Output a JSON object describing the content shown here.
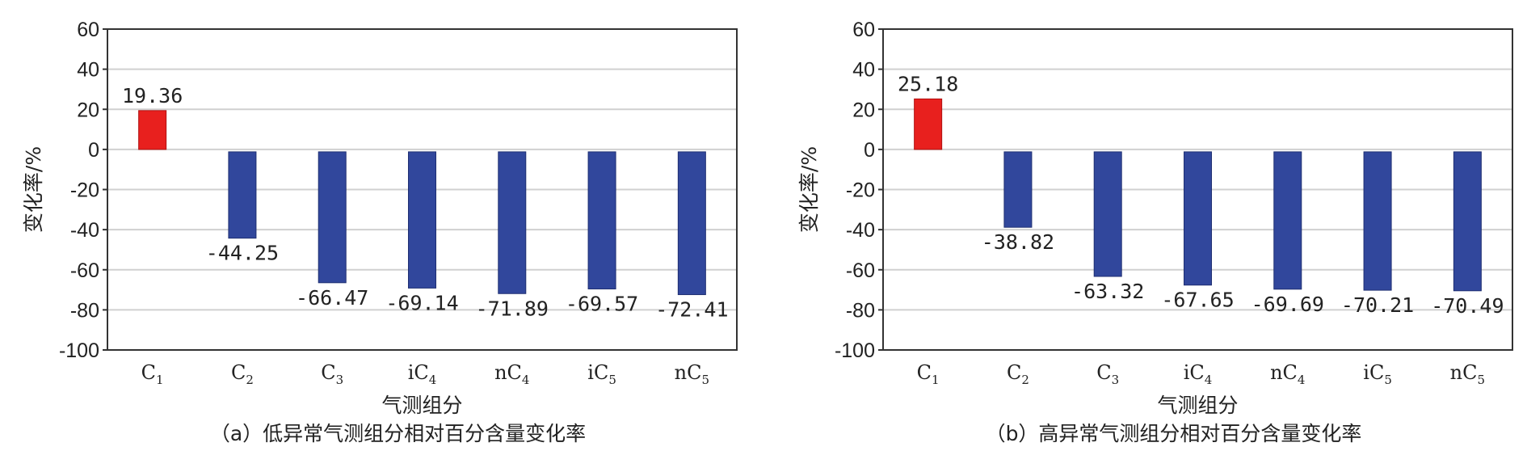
{
  "chart_data": [
    {
      "type": "bar",
      "caption": "（a）低异常气测组分相对百分含量变化率",
      "xlabel": "气测组分",
      "ylabel": "变化率/%",
      "ylim": [
        -100,
        60
      ],
      "yticks": [
        60,
        40,
        20,
        0,
        -20,
        -40,
        -60,
        -80,
        -100
      ],
      "grid": true,
      "categories": [
        {
          "prefix": "C",
          "sub": "1"
        },
        {
          "prefix": "C",
          "sub": "2"
        },
        {
          "prefix": "C",
          "sub": "3"
        },
        {
          "prefix": "iC",
          "sub": "4"
        },
        {
          "prefix": "nC",
          "sub": "4"
        },
        {
          "prefix": "iC",
          "sub": "5"
        },
        {
          "prefix": "nC",
          "sub": "5"
        }
      ],
      "values": [
        19.36,
        -44.25,
        -66.47,
        -69.14,
        -71.89,
        -69.57,
        -72.41
      ],
      "value_labels": [
        "19.36",
        "-44.25",
        "-66.47",
        "-69.14",
        "-71.89",
        "-69.57",
        "-72.41"
      ],
      "colors": {
        "positive": "#e8201e",
        "negative": "#31479c"
      }
    },
    {
      "type": "bar",
      "caption": "（b）高异常气测组分相对百分含量变化率",
      "xlabel": "气测组分",
      "ylabel": "变化率/%",
      "ylim": [
        -100,
        60
      ],
      "yticks": [
        60,
        40,
        20,
        0,
        -20,
        -40,
        -60,
        -80,
        -100
      ],
      "grid": true,
      "categories": [
        {
          "prefix": "C",
          "sub": "1"
        },
        {
          "prefix": "C",
          "sub": "2"
        },
        {
          "prefix": "C",
          "sub": "3"
        },
        {
          "prefix": "iC",
          "sub": "4"
        },
        {
          "prefix": "nC",
          "sub": "4"
        },
        {
          "prefix": "iC",
          "sub": "5"
        },
        {
          "prefix": "nC",
          "sub": "5"
        }
      ],
      "values": [
        25.18,
        -38.82,
        -63.32,
        -67.65,
        -69.69,
        -70.21,
        -70.49
      ],
      "value_labels": [
        "25.18",
        "-38.82",
        "-63.32",
        "-67.65",
        "-69.69",
        "-70.21",
        "-70.49"
      ],
      "colors": {
        "positive": "#e8201e",
        "negative": "#31479c"
      }
    }
  ]
}
